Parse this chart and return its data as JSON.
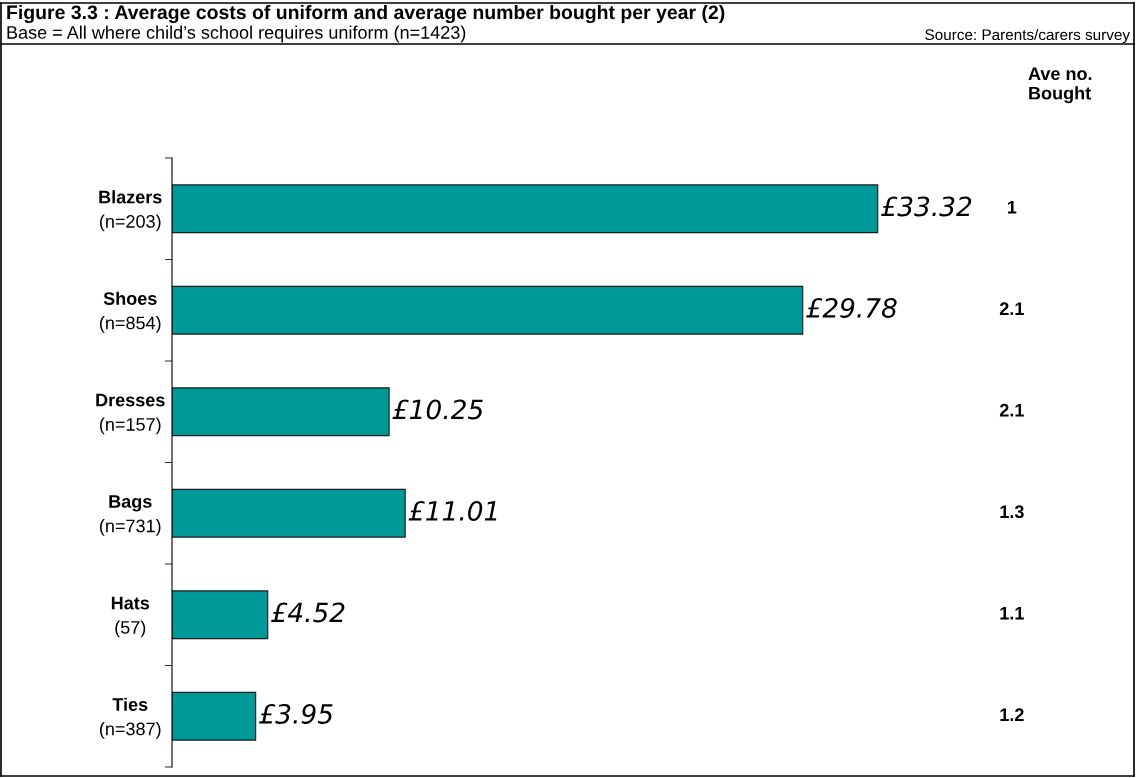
{
  "chart_data": {
    "type": "bar",
    "orientation": "horizontal",
    "title": "Figure 3.3 : Average costs of uniform and average number bought per year (2)",
    "subtitle": "Base = All where child’s school requires uniform (n=1423)",
    "categories": [
      "Blazers\n(n=203)",
      "Shoes\n(n=854)",
      "Dresses\n(n=157)",
      "Bags\n(n=731)",
      "Hats\n(57)",
      "Ties\n(n=387)"
    ],
    "values": [
      33.32,
      29.78,
      10.25,
      11.01,
      4.52,
      3.95
    ],
    "value_labels": [
      "£33.32",
      "£29.78",
      "£10.25",
      "£11.01",
      "£4.52",
      "£3.95"
    ],
    "color": "#009999",
    "grid": false,
    "legend": false,
    "annotations": [
      "Source: Parents/carers survey",
      "Ave no.\nBought",
      "1",
      "2.1",
      "2.1",
      "1.3",
      "1.1",
      "1.2"
    ]
  }
}
